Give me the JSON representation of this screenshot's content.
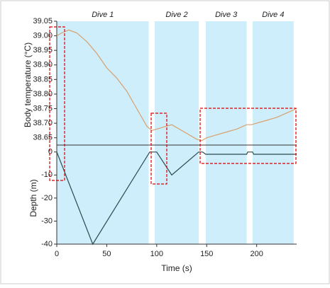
{
  "chart_data": [
    {
      "type": "line",
      "ylabel": "Body temperature (°C)",
      "color": "#d9a070",
      "bands": [
        {
          "label": "Dive 1",
          "start": 0,
          "end": 92
        },
        {
          "label": "Dive 2",
          "start": 98,
          "end": 142
        },
        {
          "label": "Dive 3",
          "start": 149,
          "end": 190
        },
        {
          "label": "Dive 4",
          "start": 196,
          "end": 237
        }
      ],
      "band_color": "#cdeefa",
      "x": [
        0,
        5,
        12,
        20,
        30,
        40,
        50,
        60,
        70,
        80,
        90,
        95,
        100,
        110,
        115,
        120,
        130,
        140,
        145,
        150,
        160,
        170,
        180,
        190,
        195,
        200,
        210,
        220,
        230,
        240
      ],
      "values": [
        39.0,
        39.01,
        39.02,
        39.01,
        38.98,
        38.94,
        38.89,
        38.855,
        38.81,
        38.75,
        38.69,
        38.675,
        38.68,
        38.69,
        38.695,
        38.685,
        38.665,
        38.645,
        38.64,
        38.65,
        38.66,
        38.67,
        38.68,
        38.695,
        38.695,
        38.7,
        38.71,
        38.72,
        38.735,
        38.75
      ],
      "xlim": [
        0,
        240
      ],
      "ylim": [
        38.625,
        39.05
      ],
      "yticks": [
        38.65,
        {
          "value": 38.7,
          "label": "38.70"
        },
        38.75,
        {
          "value": 38.8,
          "label": "38.80"
        },
        38.85,
        {
          "value": 38.9,
          "label": "38.90"
        },
        38.95,
        {
          "value": 39.0,
          "label": "39.00"
        },
        39.05
      ]
    },
    {
      "type": "line",
      "ylabel": "Depth (m)",
      "xlabel": "Time (s)",
      "color": "#2e4a4e",
      "x": [
        0,
        36,
        93,
        100,
        115,
        142,
        146,
        149,
        190,
        191,
        196,
        197,
        240
      ],
      "values": [
        0,
        -40,
        0,
        0,
        -10,
        0,
        0,
        -1,
        -1,
        0,
        0,
        -1,
        -1
      ],
      "xlim": [
        0,
        240
      ],
      "ylim": [
        -40,
        3
      ],
      "xticks": [
        0,
        50,
        100,
        150,
        200
      ],
      "yticks": [
        0,
        -10,
        -20,
        -30,
        -40
      ]
    }
  ]
}
